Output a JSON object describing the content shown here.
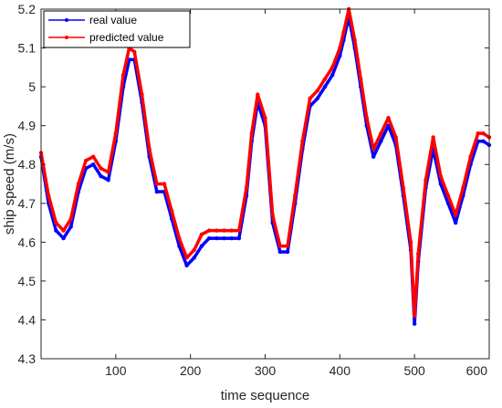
{
  "chart_data": {
    "type": "line",
    "title": "",
    "xlabel": "time sequence",
    "ylabel": "ship speed (m/s)",
    "xlim": [
      0,
      600
    ],
    "ylim": [
      4.3,
      5.2
    ],
    "xticks": [
      100,
      200,
      300,
      400,
      500,
      600
    ],
    "yticks": [
      4.3,
      4.4,
      4.5,
      4.6,
      4.7,
      4.8,
      4.9,
      5,
      5.1,
      5.2
    ],
    "grid": false,
    "legend_position": "top-left",
    "series": [
      {
        "name": "real value",
        "color": "#0000ff",
        "x": [
          0,
          10,
          20,
          30,
          40,
          50,
          60,
          70,
          80,
          90,
          100,
          110,
          118,
          125,
          135,
          145,
          155,
          165,
          175,
          185,
          195,
          205,
          215,
          225,
          235,
          245,
          255,
          265,
          275,
          282,
          290,
          300,
          310,
          320,
          330,
          340,
          350,
          360,
          370,
          380,
          390,
          400,
          405,
          412,
          420,
          428,
          436,
          445,
          455,
          465,
          475,
          485,
          495,
          500,
          505,
          515,
          525,
          535,
          545,
          555,
          565,
          575,
          585,
          592,
          600
        ],
        "y": [
          4.82,
          4.7,
          4.63,
          4.61,
          4.64,
          4.73,
          4.79,
          4.8,
          4.77,
          4.76,
          4.86,
          5.0,
          5.07,
          5.07,
          4.96,
          4.82,
          4.73,
          4.73,
          4.66,
          4.59,
          4.54,
          4.56,
          4.59,
          4.61,
          4.61,
          4.61,
          4.61,
          4.61,
          4.72,
          4.86,
          4.96,
          4.9,
          4.65,
          4.575,
          4.575,
          4.7,
          4.84,
          4.95,
          4.97,
          5.0,
          5.03,
          5.08,
          5.12,
          5.18,
          5.1,
          5.0,
          4.9,
          4.82,
          4.86,
          4.9,
          4.85,
          4.72,
          4.58,
          4.39,
          4.55,
          4.74,
          4.84,
          4.75,
          4.7,
          4.65,
          4.72,
          4.8,
          4.86,
          4.86,
          4.85
        ]
      },
      {
        "name": "predicted value",
        "color": "#ff0000",
        "x": [
          0,
          10,
          20,
          30,
          40,
          50,
          60,
          70,
          80,
          90,
          100,
          110,
          118,
          125,
          135,
          145,
          155,
          165,
          175,
          185,
          195,
          205,
          215,
          225,
          235,
          245,
          255,
          265,
          275,
          282,
          290,
          300,
          310,
          320,
          330,
          340,
          350,
          360,
          370,
          380,
          390,
          400,
          405,
          412,
          420,
          428,
          436,
          445,
          455,
          465,
          475,
          485,
          495,
          500,
          505,
          515,
          525,
          535,
          545,
          555,
          565,
          575,
          585,
          592,
          600
        ],
        "y": [
          4.83,
          4.72,
          4.65,
          4.63,
          4.66,
          4.75,
          4.81,
          4.82,
          4.79,
          4.78,
          4.88,
          5.03,
          5.1,
          5.09,
          4.98,
          4.84,
          4.75,
          4.75,
          4.68,
          4.61,
          4.56,
          4.58,
          4.62,
          4.63,
          4.63,
          4.63,
          4.63,
          4.63,
          4.74,
          4.88,
          4.98,
          4.92,
          4.67,
          4.59,
          4.59,
          4.72,
          4.86,
          4.97,
          4.99,
          5.02,
          5.05,
          5.1,
          5.14,
          5.2,
          5.12,
          5.02,
          4.92,
          4.84,
          4.88,
          4.92,
          4.87,
          4.74,
          4.6,
          4.41,
          4.57,
          4.76,
          4.87,
          4.77,
          4.72,
          4.67,
          4.74,
          4.82,
          4.88,
          4.88,
          4.87
        ]
      }
    ]
  }
}
